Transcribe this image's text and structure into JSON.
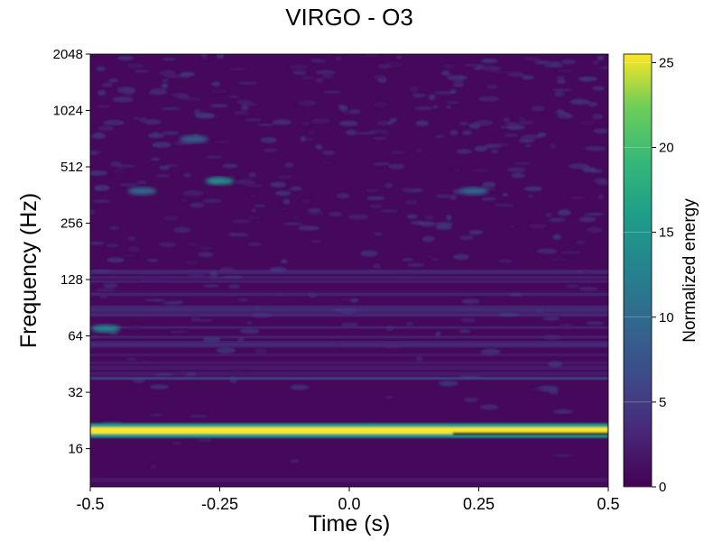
{
  "chart_data": {
    "type": "heatmap",
    "title": "VIRGO - O3",
    "xlabel": "Time (s)",
    "ylabel": "Frequency (Hz)",
    "x_ticks": [
      "-0.5",
      "-0.25",
      "0.0",
      "0.25",
      "0.5"
    ],
    "x_tick_values": [
      -0.5,
      -0.25,
      0.0,
      0.25,
      0.5
    ],
    "xlim": [
      -0.5,
      0.5
    ],
    "y_scale": "log2",
    "y_ticks": [
      "16",
      "32",
      "64",
      "128",
      "256",
      "512",
      "1024",
      "2048"
    ],
    "y_tick_values": [
      16,
      32,
      64,
      128,
      256,
      512,
      1024,
      2048
    ],
    "ylim": [
      10,
      2048
    ],
    "colorbar": {
      "label": "Normalized energy",
      "ticks": [
        "0",
        "5",
        "10",
        "15",
        "20",
        "25"
      ],
      "tick_values": [
        0,
        5,
        10,
        15,
        20,
        25
      ],
      "range": [
        0,
        25.5
      ],
      "colormap": "viridis"
    },
    "features": [
      {
        "kind": "horizontal-band",
        "frequency_hz": 20,
        "energy": 25.5,
        "time_range": [
          -0.5,
          0.5
        ]
      },
      {
        "kind": "horizontal-band",
        "frequency_hz": 38,
        "energy": 6,
        "time_range": [
          -0.5,
          0.5
        ]
      },
      {
        "kind": "blob",
        "time_s": -0.47,
        "frequency_hz": 70,
        "energy": 12
      },
      {
        "kind": "blob",
        "time_s": -0.25,
        "frequency_hz": 430,
        "energy": 13
      },
      {
        "kind": "blob",
        "time_s": -0.4,
        "frequency_hz": 380,
        "energy": 9
      },
      {
        "kind": "blob",
        "time_s": 0.24,
        "frequency_hz": 380,
        "energy": 9
      },
      {
        "kind": "blob",
        "time_s": -0.3,
        "frequency_hz": 720,
        "energy": 8
      }
    ],
    "grid": false,
    "legend": "colorbar-right"
  }
}
